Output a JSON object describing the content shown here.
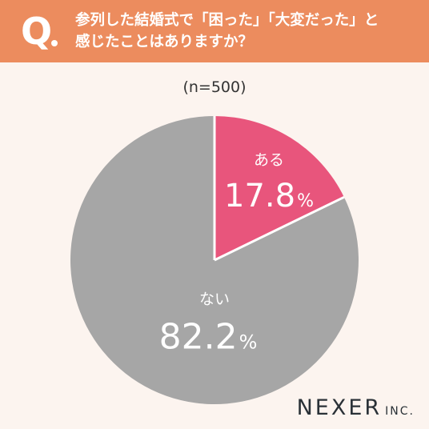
{
  "header": {
    "q_mark": "Q",
    "question_line1": "参列した結婚式で「困った」「大変だった」と",
    "question_line2": "感じたことはありますか？"
  },
  "sample_label": "(n=500)",
  "chart_data": {
    "type": "pie",
    "title": "参列した結婚式で「困った」「大変だった」と感じたことはありますか？",
    "note": "(n=500)",
    "slices": [
      {
        "label": "ある",
        "value": 17.8,
        "display": "17.8",
        "unit": "%",
        "color": "#e8557c"
      },
      {
        "label": "ない",
        "value": 82.2,
        "display": "82.2",
        "unit": "%",
        "color": "#a6a6a6"
      }
    ],
    "start": "12 o'clock",
    "direction": "clockwise"
  },
  "colors": {
    "header_bg": "#ec8c5e",
    "background": "#fcf4ef",
    "slice_border": "#ffffff"
  },
  "logo": {
    "main": "NEXER",
    "sub": "INC."
  }
}
